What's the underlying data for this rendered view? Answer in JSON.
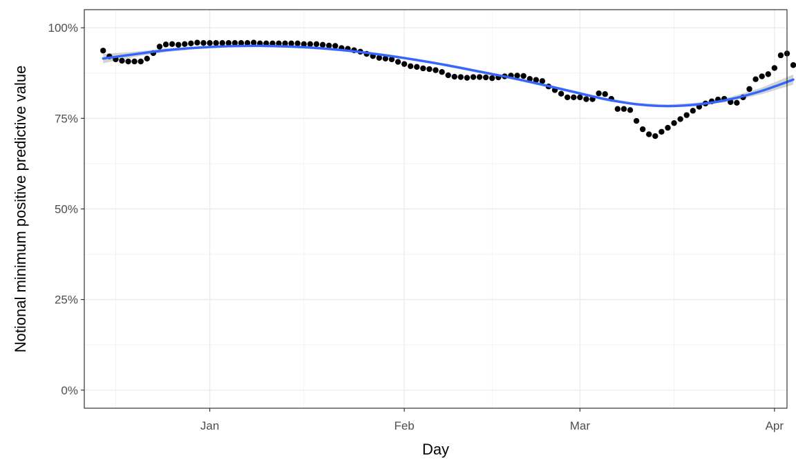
{
  "chart_data": {
    "type": "scatter",
    "xlabel": "Day",
    "ylabel": "Notional minimum positive predictive value",
    "x_domain": [
      "2020-12-12",
      "2021-04-03"
    ],
    "ylim": [
      -0.05,
      1.05
    ],
    "y_ticks": [
      {
        "value": 0,
        "label": "0%"
      },
      {
        "value": 0.25,
        "label": "25%"
      },
      {
        "value": 0.5,
        "label": "50%"
      },
      {
        "value": 0.75,
        "label": "75%"
      },
      {
        "value": 1.0,
        "label": "100%"
      }
    ],
    "x_ticks": [
      {
        "date": "2021-01-01",
        "label": "Jan"
      },
      {
        "date": "2021-02-01",
        "label": "Feb"
      },
      {
        "date": "2021-03-01",
        "label": "Mar"
      },
      {
        "date": "2021-04-01",
        "label": "Apr"
      }
    ],
    "x_minor_ticks": [
      "2020-12-17",
      "2021-01-16",
      "2021-02-15",
      "2021-03-16"
    ],
    "grid": true,
    "series": [
      {
        "kind": "points",
        "color": "#000000",
        "points": [
          [
            "2020-12-15",
            0.937
          ],
          [
            "2020-12-16",
            0.921
          ],
          [
            "2020-12-17",
            0.913
          ],
          [
            "2020-12-18",
            0.909
          ],
          [
            "2020-12-19",
            0.907
          ],
          [
            "2020-12-20",
            0.907
          ],
          [
            "2020-12-21",
            0.907
          ],
          [
            "2020-12-22",
            0.915
          ],
          [
            "2020-12-23",
            0.93
          ],
          [
            "2020-12-24",
            0.948
          ],
          [
            "2020-12-25",
            0.954
          ],
          [
            "2020-12-26",
            0.955
          ],
          [
            "2020-12-27",
            0.953
          ],
          [
            "2020-12-28",
            0.955
          ],
          [
            "2020-12-29",
            0.957
          ],
          [
            "2020-12-30",
            0.959
          ],
          [
            "2020-12-31",
            0.958
          ],
          [
            "2021-01-01",
            0.958
          ],
          [
            "2021-01-02",
            0.958
          ],
          [
            "2021-01-03",
            0.958
          ],
          [
            "2021-01-04",
            0.958
          ],
          [
            "2021-01-05",
            0.958
          ],
          [
            "2021-01-06",
            0.958
          ],
          [
            "2021-01-07",
            0.958
          ],
          [
            "2021-01-08",
            0.959
          ],
          [
            "2021-01-09",
            0.957
          ],
          [
            "2021-01-10",
            0.957
          ],
          [
            "2021-01-11",
            0.957
          ],
          [
            "2021-01-12",
            0.957
          ],
          [
            "2021-01-13",
            0.957
          ],
          [
            "2021-01-14",
            0.957
          ],
          [
            "2021-01-15",
            0.957
          ],
          [
            "2021-01-16",
            0.955
          ],
          [
            "2021-01-17",
            0.955
          ],
          [
            "2021-01-18",
            0.955
          ],
          [
            "2021-01-19",
            0.953
          ],
          [
            "2021-01-20",
            0.951
          ],
          [
            "2021-01-21",
            0.95
          ],
          [
            "2021-01-22",
            0.944
          ],
          [
            "2021-01-23",
            0.942
          ],
          [
            "2021-01-24",
            0.938
          ],
          [
            "2021-01-25",
            0.934
          ],
          [
            "2021-01-26",
            0.928
          ],
          [
            "2021-01-27",
            0.922
          ],
          [
            "2021-01-28",
            0.917
          ],
          [
            "2021-01-29",
            0.915
          ],
          [
            "2021-01-30",
            0.913
          ],
          [
            "2021-01-31",
            0.906
          ],
          [
            "2021-02-01",
            0.9
          ],
          [
            "2021-02-02",
            0.894
          ],
          [
            "2021-02-03",
            0.892
          ],
          [
            "2021-02-04",
            0.888
          ],
          [
            "2021-02-05",
            0.886
          ],
          [
            "2021-02-06",
            0.883
          ],
          [
            "2021-02-07",
            0.878
          ],
          [
            "2021-02-08",
            0.869
          ],
          [
            "2021-02-09",
            0.865
          ],
          [
            "2021-02-10",
            0.864
          ],
          [
            "2021-02-11",
            0.862
          ],
          [
            "2021-02-12",
            0.864
          ],
          [
            "2021-02-13",
            0.864
          ],
          [
            "2021-02-14",
            0.863
          ],
          [
            "2021-02-15",
            0.861
          ],
          [
            "2021-02-16",
            0.863
          ],
          [
            "2021-02-17",
            0.866
          ],
          [
            "2021-02-18",
            0.868
          ],
          [
            "2021-02-19",
            0.868
          ],
          [
            "2021-02-20",
            0.867
          ],
          [
            "2021-02-21",
            0.859
          ],
          [
            "2021-02-22",
            0.856
          ],
          [
            "2021-02-23",
            0.853
          ],
          [
            "2021-02-24",
            0.838
          ],
          [
            "2021-02-25",
            0.828
          ],
          [
            "2021-02-26",
            0.818
          ],
          [
            "2021-02-27",
            0.808
          ],
          [
            "2021-02-28",
            0.808
          ],
          [
            "2021-03-01",
            0.808
          ],
          [
            "2021-03-02",
            0.803
          ],
          [
            "2021-03-03",
            0.803
          ],
          [
            "2021-03-04",
            0.819
          ],
          [
            "2021-03-05",
            0.817
          ],
          [
            "2021-03-06",
            0.804
          ],
          [
            "2021-03-07",
            0.776
          ],
          [
            "2021-03-08",
            0.776
          ],
          [
            "2021-03-09",
            0.773
          ],
          [
            "2021-03-10",
            0.743
          ],
          [
            "2021-03-11",
            0.72
          ],
          [
            "2021-03-12",
            0.706
          ],
          [
            "2021-03-13",
            0.701
          ],
          [
            "2021-03-14",
            0.713
          ],
          [
            "2021-03-15",
            0.724
          ],
          [
            "2021-03-16",
            0.737
          ],
          [
            "2021-03-17",
            0.748
          ],
          [
            "2021-03-18",
            0.759
          ],
          [
            "2021-03-19",
            0.771
          ],
          [
            "2021-03-20",
            0.782
          ],
          [
            "2021-03-21",
            0.791
          ],
          [
            "2021-03-22",
            0.797
          ],
          [
            "2021-03-23",
            0.802
          ],
          [
            "2021-03-24",
            0.804
          ],
          [
            "2021-03-25",
            0.795
          ],
          [
            "2021-03-26",
            0.793
          ],
          [
            "2021-03-27",
            0.808
          ],
          [
            "2021-03-28",
            0.831
          ],
          [
            "2021-03-29",
            0.858
          ],
          [
            "2021-03-30",
            0.866
          ],
          [
            "2021-03-31",
            0.872
          ],
          [
            "2021-04-01",
            0.889
          ],
          [
            "2021-04-02",
            0.924
          ],
          [
            "2021-04-03",
            0.929
          ],
          [
            "2021-04-04",
            0.897
          ]
        ]
      },
      {
        "kind": "smooth",
        "color": "#3366FF",
        "band_color": "#c8c8c8",
        "points": [
          [
            "2020-12-15",
            0.915,
            0.902,
            0.928
          ],
          [
            "2020-12-20",
            0.927,
            0.92,
            0.934
          ],
          [
            "2020-12-25",
            0.938,
            0.933,
            0.943
          ],
          [
            "2020-12-30",
            0.945,
            0.941,
            0.949
          ],
          [
            "2021-01-04",
            0.949,
            0.946,
            0.953
          ],
          [
            "2021-01-09",
            0.95,
            0.947,
            0.954
          ],
          [
            "2021-01-14",
            0.948,
            0.945,
            0.952
          ],
          [
            "2021-01-19",
            0.943,
            0.94,
            0.947
          ],
          [
            "2021-01-24",
            0.935,
            0.932,
            0.939
          ],
          [
            "2021-01-29",
            0.924,
            0.921,
            0.928
          ],
          [
            "2021-02-03",
            0.911,
            0.908,
            0.915
          ],
          [
            "2021-02-08",
            0.896,
            0.892,
            0.9
          ],
          [
            "2021-02-13",
            0.879,
            0.875,
            0.883
          ],
          [
            "2021-02-18",
            0.862,
            0.858,
            0.866
          ],
          [
            "2021-02-23",
            0.843,
            0.839,
            0.847
          ],
          [
            "2021-02-28",
            0.823,
            0.819,
            0.827
          ],
          [
            "2021-03-05",
            0.803,
            0.799,
            0.807
          ],
          [
            "2021-03-10",
            0.789,
            0.785,
            0.793
          ],
          [
            "2021-03-15",
            0.784,
            0.78,
            0.788
          ],
          [
            "2021-03-20",
            0.789,
            0.784,
            0.794
          ],
          [
            "2021-03-25",
            0.803,
            0.797,
            0.809
          ],
          [
            "2021-03-30",
            0.826,
            0.817,
            0.835
          ],
          [
            "2021-04-04",
            0.857,
            0.843,
            0.871
          ]
        ]
      }
    ]
  }
}
